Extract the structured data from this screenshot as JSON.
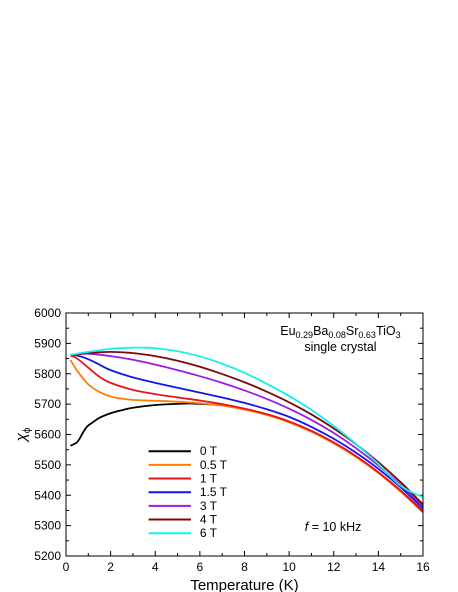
{
  "chart_data": {
    "type": "line",
    "xlabel": "Temperature (K)",
    "ylabel": "χ",
    "ylabel_sub": "ϕ",
    "xlim": [
      0,
      16
    ],
    "ylim": [
      5200,
      6000
    ],
    "xticks": [
      0,
      2,
      4,
      6,
      8,
      10,
      12,
      14,
      16
    ],
    "yticks": [
      5200,
      5300,
      5400,
      5500,
      5600,
      5700,
      5800,
      5900,
      6000
    ],
    "grid": false,
    "legend_position": "lower-center",
    "annotations": {
      "sample": {
        "parts": [
          {
            "text": "Eu",
            "sub": false
          },
          {
            "text": "0.29",
            "sub": true
          },
          {
            "text": "Ba",
            "sub": false
          },
          {
            "text": "0.08",
            "sub": true
          },
          {
            "text": "Sr",
            "sub": false
          },
          {
            "text": "0.63",
            "sub": true
          },
          {
            "text": "TiO",
            "sub": false
          },
          {
            "text": "3",
            "sub": true
          }
        ],
        "subtitle": "single crystal"
      },
      "frequency": {
        "var": "f",
        "rest": " = 10 kHz"
      }
    },
    "series": [
      {
        "name": "0 T",
        "color": "#000000",
        "x": [
          0.2,
          0.4,
          0.5,
          0.6,
          0.75,
          0.9,
          1.0,
          1.2,
          1.5,
          2,
          2.5,
          3,
          4,
          5,
          5.5,
          6,
          7,
          8,
          9,
          10,
          11,
          12,
          13,
          14,
          15,
          16
        ],
        "y": [
          5563,
          5570,
          5575,
          5585,
          5605,
          5622,
          5630,
          5640,
          5655,
          5670,
          5680,
          5688,
          5697,
          5701,
          5702,
          5701,
          5696,
          5684,
          5666,
          5642,
          5611,
          5573,
          5528,
          5475,
          5415,
          5348
        ]
      },
      {
        "name": "0.5 T",
        "color": "#ff7f00",
        "x": [
          0.2,
          0.5,
          1,
          1.5,
          2,
          2.5,
          3,
          4,
          5,
          6,
          7,
          8,
          9,
          10,
          11,
          12,
          13,
          14,
          15,
          16
        ],
        "y": [
          5845,
          5810,
          5765,
          5740,
          5725,
          5718,
          5714,
          5711,
          5708,
          5703,
          5695,
          5682,
          5664,
          5640,
          5609,
          5571,
          5526,
          5473,
          5412,
          5343
        ]
      },
      {
        "name": "1 T",
        "color": "#e8141c",
        "x": [
          0.2,
          0.5,
          1,
          1.5,
          2,
          3,
          4,
          5,
          6,
          7,
          8,
          9,
          10,
          11,
          12,
          13,
          14,
          15,
          16
        ],
        "y": [
          5860,
          5850,
          5820,
          5790,
          5770,
          5747,
          5733,
          5722,
          5712,
          5700,
          5685,
          5667,
          5643,
          5612,
          5574,
          5529,
          5476,
          5415,
          5346
        ]
      },
      {
        "name": "1.5 T",
        "color": "#1414ee",
        "x": [
          0.2,
          0.5,
          1,
          1.5,
          2,
          3,
          4,
          5,
          6,
          7,
          8,
          9,
          10,
          11,
          12,
          13,
          14,
          15,
          16
        ],
        "y": [
          5862,
          5860,
          5848,
          5830,
          5812,
          5788,
          5770,
          5754,
          5738,
          5722,
          5704,
          5683,
          5658,
          5625,
          5586,
          5540,
          5487,
          5426,
          5357
        ]
      },
      {
        "name": "3 T",
        "color": "#9a1ee0",
        "x": [
          0.2,
          0.5,
          1,
          2,
          3,
          4,
          5,
          6,
          7,
          8,
          9,
          10,
          11,
          12,
          13,
          14,
          15,
          16
        ],
        "y": [
          5862,
          5864,
          5866,
          5858,
          5846,
          5830,
          5812,
          5792,
          5770,
          5745,
          5717,
          5685,
          5648,
          5605,
          5555,
          5498,
          5434,
          5363
        ]
      },
      {
        "name": "4 T",
        "color": "#7a0a0a",
        "x": [
          0.2,
          0.5,
          1,
          2,
          3,
          4,
          5,
          6,
          7,
          8,
          9,
          10,
          11,
          12,
          13,
          14,
          15,
          16
        ],
        "y": [
          5862,
          5864,
          5868,
          5872,
          5868,
          5858,
          5843,
          5823,
          5799,
          5772,
          5741,
          5706,
          5666,
          5620,
          5568,
          5509,
          5443,
          5370
        ]
      },
      {
        "name": "6 T",
        "color": "#14f0f0",
        "x": [
          0.2,
          0.5,
          1,
          2,
          3,
          3.5,
          4,
          5,
          6,
          7,
          8,
          9,
          10,
          11,
          12,
          13,
          14,
          15,
          16
        ],
        "y": [
          5862,
          5866,
          5872,
          5882,
          5886,
          5886,
          5884,
          5874,
          5857,
          5833,
          5803,
          5767,
          5727,
          5681,
          5628,
          5569,
          5503,
          5431,
          5393
        ]
      }
    ]
  }
}
